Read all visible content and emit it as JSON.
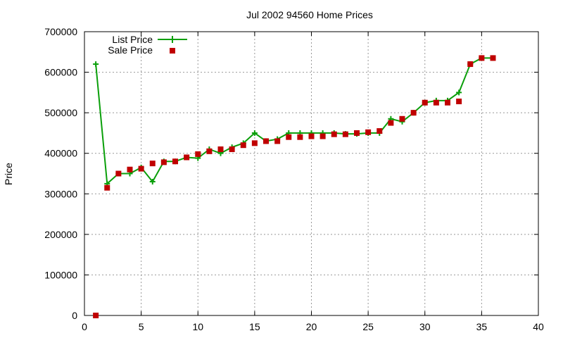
{
  "chart_data": {
    "type": "line",
    "title": "Jul 2002 94560 Home Prices",
    "xlabel": "",
    "ylabel": "Price",
    "xlim": [
      0,
      40
    ],
    "ylim": [
      0,
      700000
    ],
    "xticks": [
      0,
      5,
      10,
      15,
      20,
      25,
      30,
      35,
      40
    ],
    "yticks": [
      0,
      100000,
      200000,
      300000,
      400000,
      500000,
      600000,
      700000
    ],
    "grid": true,
    "legend_position": "top-left",
    "series": [
      {
        "name": "List Price",
        "style": "line+cross",
        "color": "#0a9f0a",
        "x": [
          1,
          2,
          3,
          4,
          5,
          6,
          7,
          8,
          9,
          10,
          11,
          12,
          13,
          14,
          15,
          16,
          17,
          18,
          19,
          20,
          21,
          22,
          23,
          24,
          25,
          26,
          27,
          28,
          29,
          30,
          31,
          32,
          33,
          34,
          35,
          36
        ],
        "y": [
          620000,
          325000,
          350000,
          350000,
          365000,
          330000,
          380000,
          380000,
          390000,
          388000,
          410000,
          400000,
          415000,
          425000,
          450000,
          430000,
          435000,
          450000,
          450000,
          450000,
          450000,
          450000,
          448000,
          448000,
          450000,
          450000,
          485000,
          478000,
          500000,
          525000,
          530000,
          530000,
          550000,
          620000,
          635000,
          635000
        ]
      },
      {
        "name": "Sale Price",
        "style": "square",
        "color": "#c00000",
        "x": [
          1,
          2,
          3,
          4,
          5,
          6,
          7,
          8,
          9,
          10,
          11,
          12,
          13,
          14,
          15,
          16,
          17,
          18,
          19,
          20,
          21,
          22,
          23,
          24,
          25,
          26,
          27,
          28,
          29,
          30,
          31,
          32,
          33,
          34,
          35,
          36
        ],
        "y": [
          0,
          315000,
          350000,
          360000,
          362000,
          375000,
          378000,
          380000,
          390000,
          398000,
          405000,
          410000,
          410000,
          420000,
          425000,
          430000,
          430000,
          440000,
          440000,
          442000,
          442000,
          447000,
          447000,
          450000,
          452000,
          455000,
          475000,
          485000,
          500000,
          525000,
          525000,
          525000,
          528000,
          620000,
          635000,
          635000
        ]
      }
    ]
  }
}
